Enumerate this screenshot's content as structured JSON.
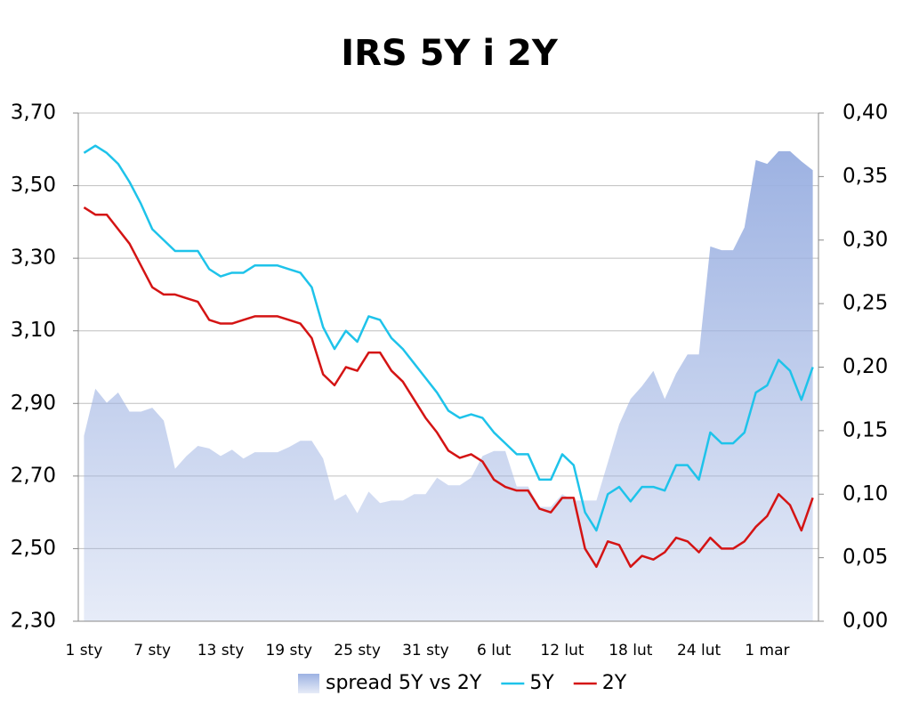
{
  "chart_data": {
    "type": "line",
    "title": "IRS 5Y i 2Y",
    "categories": [
      "1 sty",
      null,
      null,
      null,
      null,
      null,
      "7 sty",
      null,
      null,
      null,
      null,
      null,
      "13 sty",
      null,
      null,
      null,
      null,
      null,
      "19 sty",
      null,
      null,
      null,
      null,
      null,
      "25 sty",
      null,
      null,
      null,
      null,
      null,
      "31 sty",
      null,
      null,
      null,
      null,
      null,
      "6 lut",
      null,
      null,
      null,
      null,
      null,
      "12 lut",
      null,
      null,
      null,
      null,
      null,
      "18 lut",
      null,
      null,
      null,
      null,
      null,
      "24 lut",
      null,
      null,
      null,
      null,
      null,
      "1 mar",
      null,
      null,
      null,
      null
    ],
    "series": [
      {
        "name": "spread 5Y vs 2Y",
        "type": "area",
        "axis": "y2",
        "color": "#9db2e2",
        "values": [
          0.146,
          0.183,
          0.172,
          0.18,
          0.165,
          0.165,
          0.168,
          0.158,
          0.12,
          0.13,
          0.138,
          0.136,
          0.13,
          0.135,
          0.128,
          0.133,
          0.133,
          0.133,
          0.137,
          0.142,
          0.142,
          0.128,
          0.095,
          0.1,
          0.085,
          0.102,
          0.093,
          0.095,
          0.095,
          0.1,
          0.1,
          0.113,
          0.107,
          0.107,
          0.113,
          0.13,
          0.134,
          0.134,
          0.106,
          0.106,
          0.09,
          0.09,
          0.1,
          0.095,
          0.095,
          0.095,
          0.125,
          0.155,
          0.175,
          0.185,
          0.197,
          0.175,
          0.195,
          0.21,
          0.21,
          0.295,
          0.292,
          0.292,
          0.31,
          0.363,
          0.36,
          0.37,
          0.37,
          0.362,
          0.355
        ]
      },
      {
        "name": "5Y",
        "color": "#1ec3ea",
        "values": [
          3.59,
          3.61,
          3.59,
          3.56,
          3.51,
          3.45,
          3.38,
          3.35,
          3.32,
          3.32,
          3.32,
          3.27,
          3.25,
          3.26,
          3.26,
          3.28,
          3.28,
          3.28,
          3.27,
          3.26,
          3.22,
          3.11,
          3.05,
          3.1,
          3.07,
          3.14,
          3.13,
          3.08,
          3.05,
          3.01,
          2.97,
          2.93,
          2.88,
          2.86,
          2.87,
          2.86,
          2.82,
          2.79,
          2.76,
          2.76,
          2.69,
          2.69,
          2.76,
          2.73,
          2.6,
          2.55,
          2.65,
          2.67,
          2.63,
          2.67,
          2.67,
          2.66,
          2.73,
          2.73,
          2.69,
          2.82,
          2.79,
          2.79,
          2.82,
          2.93,
          2.95,
          3.02,
          2.99,
          2.91,
          3.0
        ]
      },
      {
        "name": "2Y",
        "color": "#d41414",
        "values": [
          3.44,
          3.42,
          3.42,
          3.38,
          3.34,
          3.28,
          3.22,
          3.2,
          3.2,
          3.19,
          3.18,
          3.13,
          3.12,
          3.12,
          3.13,
          3.14,
          3.14,
          3.14,
          3.13,
          3.12,
          3.08,
          2.98,
          2.95,
          3.0,
          2.99,
          3.04,
          3.04,
          2.99,
          2.96,
          2.91,
          2.86,
          2.82,
          2.77,
          2.75,
          2.76,
          2.74,
          2.69,
          2.67,
          2.66,
          2.66,
          2.61,
          2.6,
          2.64,
          2.64,
          2.5,
          2.45,
          2.52,
          2.51,
          2.45,
          2.48,
          2.47,
          2.49,
          2.53,
          2.52,
          2.49,
          2.53,
          2.5,
          2.5,
          2.52,
          2.56,
          2.59,
          2.65,
          2.62,
          2.55,
          2.64
        ]
      }
    ],
    "ylim": [
      2.3,
      3.7
    ],
    "yticks": [
      {
        "value": 2.3,
        "label": "2,30"
      },
      {
        "value": 2.5,
        "label": "2,50"
      },
      {
        "value": 2.7,
        "label": "2,70"
      },
      {
        "value": 2.9,
        "label": "2,90"
      },
      {
        "value": 3.1,
        "label": "3,10"
      },
      {
        "value": 3.3,
        "label": "3,30"
      },
      {
        "value": 3.5,
        "label": "3,50"
      },
      {
        "value": 3.7,
        "label": "3,70"
      }
    ],
    "y2lim": [
      0,
      0.4
    ],
    "y2ticks": [
      {
        "value": 0,
        "label": "0,00"
      },
      {
        "value": 0.05,
        "label": "0,05"
      },
      {
        "value": 0.1,
        "label": "0,10"
      },
      {
        "value": 0.15,
        "label": "0,15"
      },
      {
        "value": 0.2,
        "label": "0,20"
      },
      {
        "value": 0.25,
        "label": "0,25"
      },
      {
        "value": 0.3,
        "label": "0,30"
      },
      {
        "value": 0.35,
        "label": "0,35"
      },
      {
        "value": 0.4,
        "label": "0,40"
      }
    ],
    "grid": true,
    "legend": "bottom"
  }
}
